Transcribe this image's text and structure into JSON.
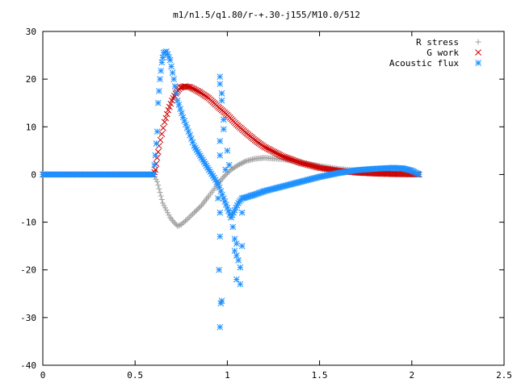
{
  "chart_data": {
    "type": "scatter",
    "title": "m1/n1.5/q1.80/r-+.30-j155/M10.0/512",
    "xlabel": "",
    "ylabel": "",
    "xlim": [
      0,
      2.5
    ],
    "ylim": [
      -40,
      30
    ],
    "x_ticks": [
      "0",
      "0.5",
      "1",
      "1.5",
      "2",
      "2.5"
    ],
    "y_ticks": [
      "30",
      "20",
      "10",
      "0",
      "-10",
      "-20",
      "-30",
      "-40"
    ],
    "grid": false,
    "legend_position": "top-right",
    "series": [
      {
        "name": "R stress",
        "marker": "plus",
        "color": "#a0a0a0",
        "points": [
          [
            0.0,
            0
          ],
          [
            0.05,
            0
          ],
          [
            0.1,
            0
          ],
          [
            0.15,
            0
          ],
          [
            0.2,
            0
          ],
          [
            0.25,
            0
          ],
          [
            0.3,
            0
          ],
          [
            0.35,
            0
          ],
          [
            0.4,
            0
          ],
          [
            0.45,
            0
          ],
          [
            0.5,
            0
          ],
          [
            0.55,
            0
          ],
          [
            0.6,
            0
          ],
          [
            0.62,
            -1.5
          ],
          [
            0.63,
            -3
          ],
          [
            0.64,
            -4.5
          ],
          [
            0.65,
            -6
          ],
          [
            0.67,
            -7.5
          ],
          [
            0.69,
            -9
          ],
          [
            0.71,
            -10
          ],
          [
            0.73,
            -10.8
          ],
          [
            0.75,
            -10.5
          ],
          [
            0.78,
            -9.5
          ],
          [
            0.82,
            -8
          ],
          [
            0.86,
            -6.5
          ],
          [
            0.9,
            -4.5
          ],
          [
            0.94,
            -2.5
          ],
          [
            0.98,
            -0.5
          ],
          [
            1.02,
            1
          ],
          [
            1.06,
            2
          ],
          [
            1.1,
            2.8
          ],
          [
            1.15,
            3.3
          ],
          [
            1.2,
            3.5
          ],
          [
            1.3,
            3.2
          ],
          [
            1.4,
            2.5
          ],
          [
            1.5,
            1.8
          ],
          [
            1.6,
            1.2
          ],
          [
            1.7,
            0.8
          ],
          [
            1.8,
            0.5
          ],
          [
            1.9,
            0.3
          ],
          [
            2.0,
            0.1
          ],
          [
            2.04,
            0
          ]
        ]
      },
      {
        "name": "G work",
        "marker": "cross",
        "color": "#cc0000",
        "points": [
          [
            0.0,
            0
          ],
          [
            0.05,
            0
          ],
          [
            0.1,
            0
          ],
          [
            0.15,
            0
          ],
          [
            0.2,
            0
          ],
          [
            0.25,
            0
          ],
          [
            0.3,
            0
          ],
          [
            0.35,
            0
          ],
          [
            0.4,
            0
          ],
          [
            0.45,
            0
          ],
          [
            0.5,
            0
          ],
          [
            0.55,
            0
          ],
          [
            0.6,
            0
          ],
          [
            0.61,
            1
          ],
          [
            0.62,
            3.5
          ],
          [
            0.63,
            6
          ],
          [
            0.645,
            8.5
          ],
          [
            0.66,
            11
          ],
          [
            0.68,
            13.5
          ],
          [
            0.7,
            15.5
          ],
          [
            0.72,
            17
          ],
          [
            0.745,
            18.2
          ],
          [
            0.77,
            18.5
          ],
          [
            0.8,
            18.3
          ],
          [
            0.85,
            17.3
          ],
          [
            0.9,
            16
          ],
          [
            0.95,
            14.2
          ],
          [
            1.0,
            12.5
          ],
          [
            1.05,
            10.5
          ],
          [
            1.1,
            8.8
          ],
          [
            1.15,
            7.2
          ],
          [
            1.2,
            5.8
          ],
          [
            1.3,
            3.8
          ],
          [
            1.4,
            2.4
          ],
          [
            1.5,
            1.4
          ],
          [
            1.6,
            0.8
          ],
          [
            1.7,
            0.4
          ],
          [
            1.8,
            0.2
          ],
          [
            1.9,
            0.1
          ],
          [
            2.0,
            0.05
          ],
          [
            2.04,
            0
          ]
        ]
      },
      {
        "name": "Acoustic flux",
        "marker": "star",
        "color": "#1e90ff",
        "points": [
          [
            0.0,
            0
          ],
          [
            0.05,
            0
          ],
          [
            0.1,
            0
          ],
          [
            0.15,
            0
          ],
          [
            0.2,
            0
          ],
          [
            0.25,
            0
          ],
          [
            0.3,
            0
          ],
          [
            0.35,
            0
          ],
          [
            0.4,
            0
          ],
          [
            0.45,
            0
          ],
          [
            0.5,
            0
          ],
          [
            0.55,
            0
          ],
          [
            0.6,
            0
          ],
          [
            0.61,
            4
          ],
          [
            0.62,
            9
          ],
          [
            0.625,
            15
          ],
          [
            0.635,
            20
          ],
          [
            0.645,
            23.5
          ],
          [
            0.655,
            25.5
          ],
          [
            0.67,
            25.8
          ],
          [
            0.69,
            24
          ],
          [
            0.71,
            20
          ],
          [
            0.73,
            15.5
          ],
          [
            0.76,
            12
          ],
          [
            0.79,
            9
          ],
          [
            0.82,
            6
          ],
          [
            0.86,
            3.5
          ],
          [
            0.9,
            1
          ],
          [
            0.95,
            -2
          ],
          [
            0.98,
            -5
          ],
          [
            1.0,
            -7
          ],
          [
            1.02,
            -9
          ],
          [
            1.04,
            -7.5
          ],
          [
            1.06,
            -6
          ],
          [
            1.08,
            -5
          ],
          [
            1.1,
            -4.8
          ],
          [
            1.15,
            -4.2
          ],
          [
            1.2,
            -3.5
          ],
          [
            1.3,
            -2.5
          ],
          [
            1.4,
            -1.5
          ],
          [
            1.5,
            -0.5
          ],
          [
            1.6,
            0.3
          ],
          [
            1.7,
            0.9
          ],
          [
            1.8,
            1.2
          ],
          [
            1.9,
            1.4
          ],
          [
            1.95,
            1.3
          ],
          [
            2.0,
            0.8
          ],
          [
            2.04,
            0
          ],
          [
            0.96,
            -32
          ],
          [
            0.965,
            -27
          ],
          [
            0.97,
            -26.5
          ],
          [
            0.955,
            -20
          ],
          [
            0.96,
            -13
          ],
          [
            0.96,
            -8
          ],
          [
            0.95,
            -5
          ],
          [
            0.96,
            20.5
          ],
          [
            0.96,
            19
          ],
          [
            0.97,
            17
          ],
          [
            0.97,
            15.5
          ],
          [
            0.98,
            11.5
          ],
          [
            0.98,
            9.5
          ],
          [
            0.96,
            7
          ],
          [
            0.96,
            4
          ],
          [
            0.99,
            1
          ],
          [
            1.0,
            5
          ],
          [
            1.01,
            2
          ],
          [
            1.02,
            -9
          ],
          [
            1.03,
            -11
          ],
          [
            1.04,
            -13.5
          ],
          [
            1.05,
            -14.5
          ],
          [
            1.04,
            -16
          ],
          [
            1.05,
            -17
          ],
          [
            1.06,
            -18
          ],
          [
            1.07,
            -19.5
          ],
          [
            1.05,
            -22
          ],
          [
            1.07,
            -23
          ],
          [
            1.08,
            -15
          ],
          [
            1.08,
            -8
          ]
        ]
      }
    ]
  }
}
